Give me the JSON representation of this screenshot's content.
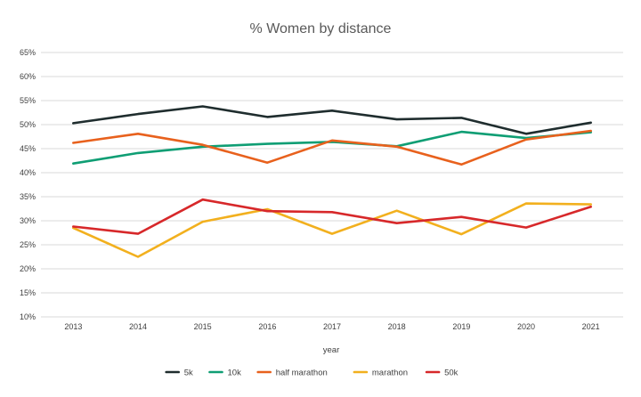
{
  "chart_data": {
    "type": "line",
    "title": "% Women by distance",
    "xlabel": "year",
    "ylabel": "",
    "categories": [
      "2013",
      "2014",
      "2015",
      "2016",
      "2017",
      "2018",
      "2019",
      "2020",
      "2021"
    ],
    "y_ticks": [
      "10%",
      "15%",
      "20%",
      "25%",
      "30%",
      "35%",
      "40%",
      "45%",
      "50%",
      "55%",
      "60%",
      "65%"
    ],
    "ylim": [
      10,
      65
    ],
    "grid": true,
    "legend_position": "bottom",
    "series": [
      {
        "name": "5k",
        "color": "#1f2d2e",
        "values": [
          50.3,
          52.2,
          53.8,
          51.6,
          52.9,
          51.1,
          51.4,
          48.1,
          50.4
        ]
      },
      {
        "name": "10k",
        "color": "#0f9e74",
        "values": [
          41.9,
          44.1,
          45.4,
          46.0,
          46.4,
          45.5,
          48.5,
          47.2,
          48.4
        ]
      },
      {
        "name": "half marathon",
        "color": "#e8611d",
        "values": [
          46.2,
          48.1,
          45.8,
          42.1,
          46.7,
          45.4,
          41.7,
          46.9,
          48.7
        ]
      },
      {
        "name": "marathon",
        "color": "#f2b01e",
        "values": [
          28.5,
          22.5,
          29.8,
          32.4,
          27.3,
          32.1,
          27.2,
          33.6,
          33.4
        ]
      },
      {
        "name": "50k",
        "color": "#d7282a",
        "values": [
          28.8,
          27.3,
          34.4,
          32.0,
          31.8,
          29.5,
          30.8,
          28.6,
          32.9
        ]
      }
    ]
  }
}
